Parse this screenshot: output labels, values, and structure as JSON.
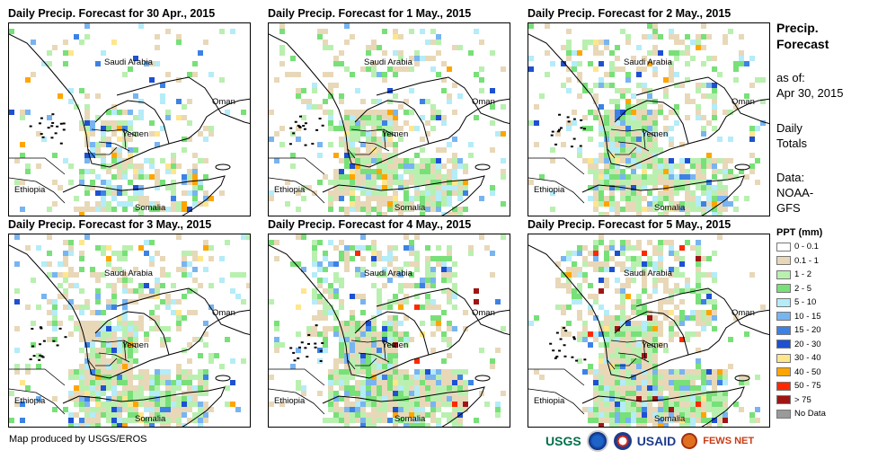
{
  "panels": [
    {
      "title": "Daily Precip. Forecast for 30 Apr., 2015",
      "level": 1
    },
    {
      "title": "Daily Precip. Forecast for 1 May., 2015",
      "level": 2
    },
    {
      "title": "Daily Precip. Forecast for 2 May., 2015",
      "level": 3
    },
    {
      "title": "Daily Precip. Forecast for 3 May., 2015",
      "level": 3
    },
    {
      "title": "Daily Precip. Forecast for 4 May., 2015",
      "level": 4
    },
    {
      "title": "Daily Precip. Forecast for 5 May., 2015",
      "level": 5
    }
  ],
  "places": {
    "saudi": "Saudi Arabia",
    "oman": "Oman",
    "yemen": "Yemen",
    "ethiopia": "Ethiopia",
    "somalia": "Somalia"
  },
  "sidebar": {
    "title_line1": "Precip.",
    "title_line2": "Forecast",
    "asof_label": "as of:",
    "asof_date": "Apr 30, 2015",
    "totals_line1": "Daily",
    "totals_line2": "Totals",
    "data_label": "Data:",
    "data_line1": "NOAA-",
    "data_line2": "GFS"
  },
  "legend": {
    "title": "PPT (mm)",
    "items": [
      {
        "label": "0 - 0.1",
        "color": "#ffffff"
      },
      {
        "label": "0.1 - 1",
        "color": "#e8d8b8"
      },
      {
        "label": "1 - 2",
        "color": "#b9f0b0"
      },
      {
        "label": "2 - 5",
        "color": "#78e078"
      },
      {
        "label": "5 - 10",
        "color": "#b4ecf8"
      },
      {
        "label": "10 - 15",
        "color": "#78b4f0"
      },
      {
        "label": "15 - 20",
        "color": "#3c82e6"
      },
      {
        "label": "20 - 30",
        "color": "#1e50d2"
      },
      {
        "label": "30 - 40",
        "color": "#ffe68c"
      },
      {
        "label": "40 - 50",
        "color": "#ffa500"
      },
      {
        "label": "50 - 75",
        "color": "#ff2800"
      },
      {
        "label": "> 75",
        "color": "#a01414"
      },
      {
        "label": "No Data",
        "color": "#9a9a9a"
      }
    ]
  },
  "credit": "Map produced by USGS/EROS",
  "logos": {
    "usgs": "USGS",
    "usaid": "USAID",
    "fews": "FEWS NET"
  }
}
